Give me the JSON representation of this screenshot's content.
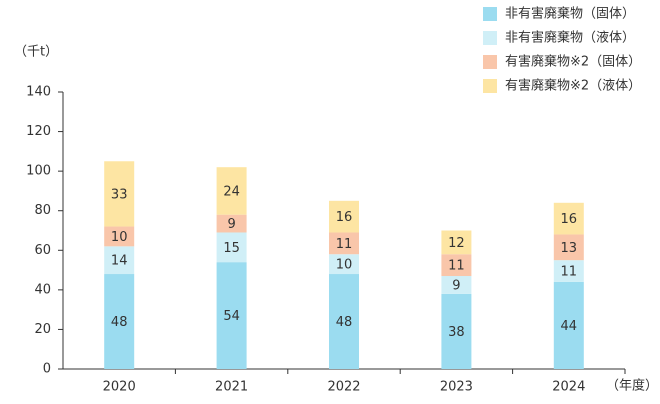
{
  "chart_data": {
    "type": "stacked_bar",
    "ylabel": "（千t）",
    "xlabel": "（年度）",
    "categories": [
      "2020",
      "2021",
      "2022",
      "2023",
      "2024"
    ],
    "series": [
      {
        "name": "非有害廃棄物（固体）",
        "color": "#9bdcf0",
        "values": [
          48,
          54,
          48,
          38,
          44
        ]
      },
      {
        "name": "非有害廃棄物（液体）",
        "color": "#d0eff7",
        "values": [
          14,
          15,
          10,
          9,
          11
        ]
      },
      {
        "name": "有害廃棄物※2（固体）",
        "color": "#f9c6aa",
        "values": [
          10,
          9,
          11,
          11,
          13
        ]
      },
      {
        "name": "有害廃棄物※2（液体）",
        "color": "#fde5a3",
        "values": [
          33,
          24,
          16,
          12,
          16
        ]
      }
    ],
    "ylim": [
      0,
      140
    ],
    "yticks": [
      0,
      20,
      40,
      60,
      80,
      100,
      120,
      140
    ]
  }
}
